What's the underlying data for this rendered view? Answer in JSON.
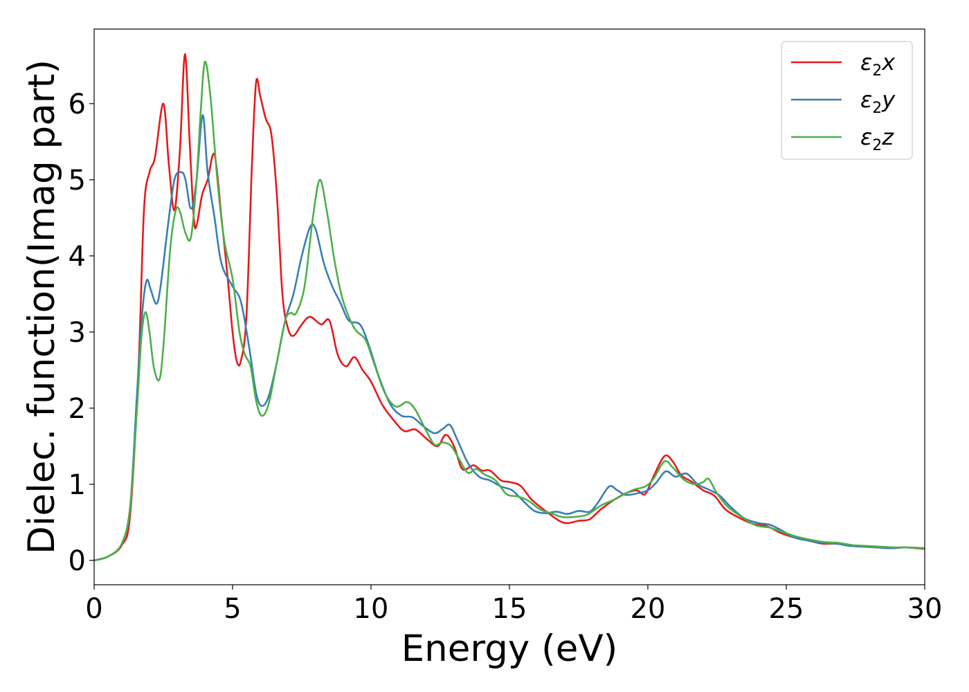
{
  "chart_data": {
    "type": "line",
    "title": "",
    "xlabel": "Energy (eV)",
    "ylabel": "Dielec. function(Imag part)",
    "xlim": [
      0,
      30
    ],
    "ylim": [
      -0.32,
      6.98
    ],
    "xticks": [
      0,
      5,
      10,
      15,
      20,
      25,
      30
    ],
    "yticks": [
      0,
      1,
      2,
      3,
      4,
      5,
      6
    ],
    "grid": false,
    "legend_position": "top-right",
    "series": [
      {
        "name": "ε₂x",
        "legend_base": "ε",
        "legend_sub": "2",
        "legend_suffix": "x",
        "color": "#e41a1c",
        "points": [
          [
            0,
            0
          ],
          [
            0.5,
            0.05
          ],
          [
            1,
            0.2
          ],
          [
            1.3,
            0.6
          ],
          [
            1.6,
            2.5
          ],
          [
            1.8,
            4.6
          ],
          [
            2.0,
            5.1
          ],
          [
            2.2,
            5.3
          ],
          [
            2.5,
            6.0
          ],
          [
            2.7,
            5.2
          ],
          [
            2.9,
            4.6
          ],
          [
            3.1,
            5.4
          ],
          [
            3.28,
            6.65
          ],
          [
            3.45,
            5.5
          ],
          [
            3.6,
            4.5
          ],
          [
            3.7,
            4.4
          ],
          [
            3.9,
            4.8
          ],
          [
            4.1,
            5.0
          ],
          [
            4.35,
            5.33
          ],
          [
            4.6,
            4.5
          ],
          [
            4.8,
            3.8
          ],
          [
            5.0,
            3.0
          ],
          [
            5.15,
            2.62
          ],
          [
            5.3,
            2.62
          ],
          [
            5.5,
            3.2
          ],
          [
            5.7,
            5.2
          ],
          [
            5.85,
            6.28
          ],
          [
            6.0,
            6.1
          ],
          [
            6.2,
            5.8
          ],
          [
            6.4,
            5.6
          ],
          [
            6.6,
            4.8
          ],
          [
            6.8,
            3.5
          ],
          [
            7.0,
            3.05
          ],
          [
            7.2,
            2.95
          ],
          [
            7.5,
            3.1
          ],
          [
            7.8,
            3.2
          ],
          [
            8.2,
            3.1
          ],
          [
            8.5,
            3.15
          ],
          [
            8.8,
            2.7
          ],
          [
            9.1,
            2.55
          ],
          [
            9.4,
            2.67
          ],
          [
            9.7,
            2.5
          ],
          [
            10.0,
            2.35
          ],
          [
            10.4,
            2.05
          ],
          [
            10.8,
            1.85
          ],
          [
            11.2,
            1.7
          ],
          [
            11.6,
            1.72
          ],
          [
            12.0,
            1.6
          ],
          [
            12.4,
            1.5
          ],
          [
            12.7,
            1.65
          ],
          [
            13.0,
            1.5
          ],
          [
            13.3,
            1.2
          ],
          [
            13.7,
            1.25
          ],
          [
            14.0,
            1.18
          ],
          [
            14.3,
            1.18
          ],
          [
            14.7,
            1.05
          ],
          [
            15.0,
            1.03
          ],
          [
            15.4,
            0.98
          ],
          [
            15.8,
            0.8
          ],
          [
            16.3,
            0.65
          ],
          [
            16.8,
            0.52
          ],
          [
            17.1,
            0.49
          ],
          [
            17.5,
            0.52
          ],
          [
            17.9,
            0.54
          ],
          [
            18.3,
            0.67
          ],
          [
            18.8,
            0.8
          ],
          [
            19.2,
            0.88
          ],
          [
            19.6,
            0.92
          ],
          [
            19.9,
            0.87
          ],
          [
            20.2,
            1.1
          ],
          [
            20.6,
            1.37
          ],
          [
            20.9,
            1.3
          ],
          [
            21.2,
            1.12
          ],
          [
            21.6,
            1.03
          ],
          [
            22.0,
            0.92
          ],
          [
            22.4,
            0.85
          ],
          [
            22.8,
            0.67
          ],
          [
            23.3,
            0.56
          ],
          [
            23.8,
            0.48
          ],
          [
            24.3,
            0.45
          ],
          [
            24.8,
            0.36
          ],
          [
            25.3,
            0.3
          ],
          [
            25.8,
            0.26
          ],
          [
            26.3,
            0.22
          ],
          [
            26.8,
            0.22
          ],
          [
            27.3,
            0.2
          ],
          [
            27.8,
            0.18
          ],
          [
            28.3,
            0.17
          ],
          [
            28.8,
            0.16
          ],
          [
            29.3,
            0.17
          ],
          [
            30,
            0.15
          ]
        ]
      },
      {
        "name": "ε₂y",
        "legend_base": "ε",
        "legend_sub": "2",
        "legend_suffix": "y",
        "color": "#377eb8",
        "points": [
          [
            0,
            0
          ],
          [
            0.5,
            0.05
          ],
          [
            1,
            0.22
          ],
          [
            1.3,
            0.7
          ],
          [
            1.55,
            2.2
          ],
          [
            1.75,
            3.3
          ],
          [
            1.9,
            3.68
          ],
          [
            2.05,
            3.55
          ],
          [
            2.25,
            3.37
          ],
          [
            2.4,
            3.6
          ],
          [
            2.65,
            4.35
          ],
          [
            2.9,
            5.0
          ],
          [
            3.15,
            5.1
          ],
          [
            3.3,
            5.0
          ],
          [
            3.5,
            4.62
          ],
          [
            3.7,
            5.0
          ],
          [
            3.92,
            5.85
          ],
          [
            4.1,
            5.1
          ],
          [
            4.35,
            4.5
          ],
          [
            4.6,
            3.9
          ],
          [
            5.0,
            3.6
          ],
          [
            5.3,
            3.4
          ],
          [
            5.6,
            2.8
          ],
          [
            5.85,
            2.2
          ],
          [
            6.05,
            2.03
          ],
          [
            6.3,
            2.15
          ],
          [
            6.6,
            2.6
          ],
          [
            6.9,
            3.15
          ],
          [
            7.2,
            3.5
          ],
          [
            7.5,
            4.0
          ],
          [
            7.8,
            4.38
          ],
          [
            8.0,
            4.35
          ],
          [
            8.3,
            3.9
          ],
          [
            8.6,
            3.6
          ],
          [
            8.9,
            3.38
          ],
          [
            9.2,
            3.15
          ],
          [
            9.6,
            3.1
          ],
          [
            9.9,
            2.85
          ],
          [
            10.3,
            2.4
          ],
          [
            10.7,
            2.05
          ],
          [
            11.1,
            1.9
          ],
          [
            11.5,
            1.88
          ],
          [
            11.9,
            1.76
          ],
          [
            12.3,
            1.67
          ],
          [
            12.6,
            1.73
          ],
          [
            12.85,
            1.78
          ],
          [
            13.1,
            1.6
          ],
          [
            13.5,
            1.28
          ],
          [
            13.9,
            1.1
          ],
          [
            14.3,
            1.05
          ],
          [
            14.7,
            0.97
          ],
          [
            15.1,
            0.92
          ],
          [
            15.5,
            0.78
          ],
          [
            15.9,
            0.65
          ],
          [
            16.3,
            0.62
          ],
          [
            16.7,
            0.64
          ],
          [
            17.1,
            0.61
          ],
          [
            17.5,
            0.65
          ],
          [
            17.9,
            0.64
          ],
          [
            18.2,
            0.76
          ],
          [
            18.6,
            0.97
          ],
          [
            18.9,
            0.92
          ],
          [
            19.2,
            0.86
          ],
          [
            19.6,
            0.88
          ],
          [
            20.0,
            0.92
          ],
          [
            20.3,
            1.02
          ],
          [
            20.65,
            1.17
          ],
          [
            21.0,
            1.1
          ],
          [
            21.4,
            1.14
          ],
          [
            21.8,
            1.0
          ],
          [
            22.2,
            0.93
          ],
          [
            22.6,
            0.85
          ],
          [
            23.0,
            0.7
          ],
          [
            23.5,
            0.55
          ],
          [
            24.0,
            0.49
          ],
          [
            24.4,
            0.47
          ],
          [
            24.8,
            0.4
          ],
          [
            25.3,
            0.3
          ],
          [
            25.8,
            0.26
          ],
          [
            26.3,
            0.23
          ],
          [
            26.8,
            0.22
          ],
          [
            27.3,
            0.19
          ],
          [
            27.8,
            0.18
          ],
          [
            28.3,
            0.17
          ],
          [
            28.8,
            0.16
          ],
          [
            29.3,
            0.17
          ],
          [
            30,
            0.16
          ]
        ]
      },
      {
        "name": "ε₂z",
        "legend_base": "ε",
        "legend_sub": "2",
        "legend_suffix": "z",
        "color": "#4daf4a",
        "points": [
          [
            0,
            0
          ],
          [
            0.5,
            0.05
          ],
          [
            1,
            0.22
          ],
          [
            1.3,
            0.7
          ],
          [
            1.55,
            2.0
          ],
          [
            1.7,
            2.9
          ],
          [
            1.85,
            3.26
          ],
          [
            2.0,
            3.0
          ],
          [
            2.15,
            2.55
          ],
          [
            2.35,
            2.37
          ],
          [
            2.5,
            2.8
          ],
          [
            2.75,
            4.1
          ],
          [
            2.95,
            4.6
          ],
          [
            3.1,
            4.58
          ],
          [
            3.3,
            4.3
          ],
          [
            3.5,
            4.25
          ],
          [
            3.7,
            5.0
          ],
          [
            3.85,
            5.9
          ],
          [
            4.0,
            6.55
          ],
          [
            4.2,
            6.1
          ],
          [
            4.45,
            5.0
          ],
          [
            4.7,
            4.2
          ],
          [
            5.0,
            3.7
          ],
          [
            5.25,
            3.0
          ],
          [
            5.45,
            2.7
          ],
          [
            5.65,
            2.55
          ],
          [
            5.85,
            2.1
          ],
          [
            6.05,
            1.9
          ],
          [
            6.3,
            2.05
          ],
          [
            6.6,
            2.6
          ],
          [
            6.9,
            3.15
          ],
          [
            7.1,
            3.25
          ],
          [
            7.3,
            3.25
          ],
          [
            7.6,
            3.6
          ],
          [
            7.9,
            4.5
          ],
          [
            8.15,
            5.0
          ],
          [
            8.4,
            4.6
          ],
          [
            8.7,
            3.9
          ],
          [
            9.0,
            3.4
          ],
          [
            9.4,
            3.05
          ],
          [
            9.8,
            2.9
          ],
          [
            10.1,
            2.6
          ],
          [
            10.5,
            2.2
          ],
          [
            10.9,
            2.02
          ],
          [
            11.3,
            2.08
          ],
          [
            11.6,
            1.98
          ],
          [
            12.0,
            1.7
          ],
          [
            12.3,
            1.52
          ],
          [
            12.6,
            1.55
          ],
          [
            12.9,
            1.5
          ],
          [
            13.2,
            1.32
          ],
          [
            13.5,
            1.15
          ],
          [
            13.8,
            1.2
          ],
          [
            14.1,
            1.13
          ],
          [
            14.5,
            1.05
          ],
          [
            14.9,
            0.87
          ],
          [
            15.3,
            0.84
          ],
          [
            15.7,
            0.78
          ],
          [
            16.1,
            0.67
          ],
          [
            16.5,
            0.62
          ],
          [
            16.9,
            0.57
          ],
          [
            17.3,
            0.57
          ],
          [
            17.8,
            0.6
          ],
          [
            18.3,
            0.72
          ],
          [
            18.8,
            0.8
          ],
          [
            19.1,
            0.86
          ],
          [
            19.5,
            0.93
          ],
          [
            19.9,
            0.97
          ],
          [
            20.2,
            1.07
          ],
          [
            20.6,
            1.3
          ],
          [
            20.9,
            1.22
          ],
          [
            21.3,
            1.06
          ],
          [
            21.7,
            1.0
          ],
          [
            22.0,
            1.03
          ],
          [
            22.2,
            1.07
          ],
          [
            22.5,
            0.88
          ],
          [
            22.9,
            0.7
          ],
          [
            23.4,
            0.57
          ],
          [
            23.9,
            0.46
          ],
          [
            24.4,
            0.43
          ],
          [
            24.9,
            0.37
          ],
          [
            25.4,
            0.31
          ],
          [
            25.9,
            0.27
          ],
          [
            26.4,
            0.24
          ],
          [
            26.9,
            0.23
          ],
          [
            27.4,
            0.2
          ],
          [
            27.9,
            0.19
          ],
          [
            28.4,
            0.18
          ],
          [
            28.9,
            0.17
          ],
          [
            29.4,
            0.17
          ],
          [
            30,
            0.16
          ]
        ]
      }
    ]
  }
}
